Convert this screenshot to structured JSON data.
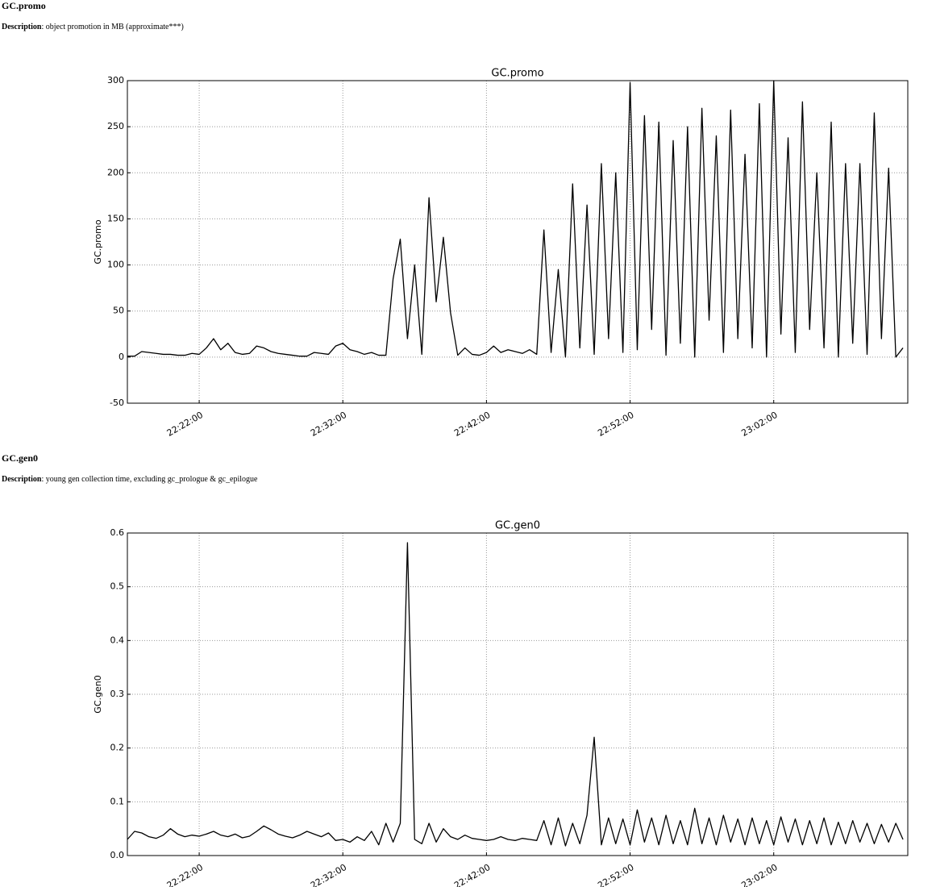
{
  "sections": [
    {
      "heading": "GC.promo",
      "description_label": "Description",
      "description": ": object promotion in MB (approximate***)"
    },
    {
      "heading": "GC.gen0",
      "description_label": "Description",
      "description": ": young gen collection time, excluding gc_prologue & gc_epilogue"
    }
  ],
  "chart_data": [
    {
      "type": "line",
      "title": "GC.promo",
      "y_label": "GC.promo",
      "grid": true,
      "xlim": [
        "22:17:00",
        "23:11:20"
      ],
      "xticks": [
        "22:22:00",
        "22:32:00",
        "22:42:00",
        "22:52:00",
        "23:02:00"
      ],
      "ylim": [
        -50,
        300
      ],
      "yticks": [
        -50,
        0,
        50,
        100,
        150,
        200,
        250,
        300
      ],
      "x": [
        "22:17:00",
        "22:17:30",
        "22:18:00",
        "22:18:30",
        "22:19:00",
        "22:19:30",
        "22:20:00",
        "22:20:30",
        "22:21:00",
        "22:21:30",
        "22:22:00",
        "22:22:30",
        "22:23:00",
        "22:23:30",
        "22:24:00",
        "22:24:30",
        "22:25:00",
        "22:25:30",
        "22:26:00",
        "22:26:30",
        "22:27:00",
        "22:27:30",
        "22:28:00",
        "22:28:30",
        "22:29:00",
        "22:29:30",
        "22:30:00",
        "22:30:30",
        "22:31:00",
        "22:31:30",
        "22:32:00",
        "22:32:30",
        "22:33:00",
        "22:33:30",
        "22:34:00",
        "22:34:30",
        "22:35:00",
        "22:35:30",
        "22:36:00",
        "22:36:30",
        "22:37:00",
        "22:37:30",
        "22:38:00",
        "22:38:30",
        "22:39:00",
        "22:39:30",
        "22:40:00",
        "22:40:30",
        "22:41:00",
        "22:41:30",
        "22:42:00",
        "22:42:30",
        "22:43:00",
        "22:43:30",
        "22:44:00",
        "22:44:30",
        "22:45:00",
        "22:45:30",
        "22:46:00",
        "22:46:30",
        "22:47:00",
        "22:47:30",
        "22:48:00",
        "22:48:30",
        "22:49:00",
        "22:49:30",
        "22:50:00",
        "22:50:30",
        "22:51:00",
        "22:51:30",
        "22:52:00",
        "22:52:30",
        "22:53:00",
        "22:53:30",
        "22:54:00",
        "22:54:30",
        "22:55:00",
        "22:55:30",
        "22:56:00",
        "22:56:30",
        "22:57:00",
        "22:57:30",
        "22:58:00",
        "22:58:30",
        "22:59:00",
        "22:59:30",
        "23:00:00",
        "23:00:30",
        "23:01:00",
        "23:01:30",
        "23:02:00",
        "23:02:30",
        "23:03:00",
        "23:03:30",
        "23:04:00",
        "23:04:30",
        "23:05:00",
        "23:05:30",
        "23:06:00",
        "23:06:30",
        "23:07:00",
        "23:07:30",
        "23:08:00",
        "23:08:30",
        "23:09:00",
        "23:09:30",
        "23:10:00",
        "23:10:30",
        "23:11:00"
      ],
      "series": [
        {
          "color": "#000000",
          "values": [
            1,
            1,
            6,
            5,
            4,
            3,
            3,
            2,
            2,
            4,
            3,
            10,
            20,
            8,
            15,
            5,
            3,
            4,
            12,
            10,
            6,
            4,
            3,
            2,
            1,
            1,
            5,
            4,
            3,
            12,
            15,
            8,
            6,
            3,
            5,
            2,
            2,
            85,
            128,
            20,
            100,
            3,
            173,
            60,
            130,
            48,
            2,
            10,
            3,
            2,
            5,
            12,
            5,
            8,
            6,
            4,
            8,
            3,
            138,
            5,
            95,
            0,
            188,
            10,
            165,
            3,
            210,
            20,
            200,
            5,
            298,
            8,
            262,
            30,
            255,
            2,
            235,
            15,
            250,
            0,
            270,
            40,
            240,
            5,
            268,
            20,
            220,
            10,
            275,
            0,
            300,
            25,
            238,
            5,
            277,
            30,
            200,
            10,
            255,
            0,
            210,
            15,
            210,
            3,
            265,
            20,
            205,
            0,
            10
          ]
        }
      ]
    },
    {
      "type": "line",
      "title": "GC.gen0",
      "y_label": "GC.gen0",
      "grid": true,
      "xlim": [
        "22:17:00",
        "23:11:20"
      ],
      "xticks": [
        "22:22:00",
        "22:32:00",
        "22:42:00",
        "22:52:00",
        "23:02:00"
      ],
      "ylim": [
        0,
        0.6
      ],
      "yticks": [
        {
          "value": 0,
          "label": "0.0"
        },
        0.1,
        0.2,
        0.3,
        0.4,
        0.5,
        0.6
      ],
      "x": [
        "22:17:00",
        "22:17:30",
        "22:18:00",
        "22:18:30",
        "22:19:00",
        "22:19:30",
        "22:20:00",
        "22:20:30",
        "22:21:00",
        "22:21:30",
        "22:22:00",
        "22:22:30",
        "22:23:00",
        "22:23:30",
        "22:24:00",
        "22:24:30",
        "22:25:00",
        "22:25:30",
        "22:26:00",
        "22:26:30",
        "22:27:00",
        "22:27:30",
        "22:28:00",
        "22:28:30",
        "22:29:00",
        "22:29:30",
        "22:30:00",
        "22:30:30",
        "22:31:00",
        "22:31:30",
        "22:32:00",
        "22:32:30",
        "22:33:00",
        "22:33:30",
        "22:34:00",
        "22:34:30",
        "22:35:00",
        "22:35:30",
        "22:36:00",
        "22:36:30",
        "22:37:00",
        "22:37:30",
        "22:38:00",
        "22:38:30",
        "22:39:00",
        "22:39:30",
        "22:40:00",
        "22:40:30",
        "22:41:00",
        "22:41:30",
        "22:42:00",
        "22:42:30",
        "22:43:00",
        "22:43:30",
        "22:44:00",
        "22:44:30",
        "22:45:00",
        "22:45:30",
        "22:46:00",
        "22:46:30",
        "22:47:00",
        "22:47:30",
        "22:48:00",
        "22:48:30",
        "22:49:00",
        "22:49:30",
        "22:50:00",
        "22:50:30",
        "22:51:00",
        "22:51:30",
        "22:52:00",
        "22:52:30",
        "22:53:00",
        "22:53:30",
        "22:54:00",
        "22:54:30",
        "22:55:00",
        "22:55:30",
        "22:56:00",
        "22:56:30",
        "22:57:00",
        "22:57:30",
        "22:58:00",
        "22:58:30",
        "22:59:00",
        "22:59:30",
        "23:00:00",
        "23:00:30",
        "23:01:00",
        "23:01:30",
        "23:02:00",
        "23:02:30",
        "23:03:00",
        "23:03:30",
        "23:04:00",
        "23:04:30",
        "23:05:00",
        "23:05:30",
        "23:06:00",
        "23:06:30",
        "23:07:00",
        "23:07:30",
        "23:08:00",
        "23:08:30",
        "23:09:00",
        "23:09:30",
        "23:10:00",
        "23:10:30",
        "23:11:00"
      ],
      "series": [
        {
          "color": "#000000",
          "values": [
            0.03,
            0.045,
            0.042,
            0.035,
            0.032,
            0.038,
            0.05,
            0.04,
            0.035,
            0.038,
            0.036,
            0.04,
            0.045,
            0.038,
            0.035,
            0.04,
            0.033,
            0.036,
            0.045,
            0.055,
            0.048,
            0.04,
            0.036,
            0.033,
            0.038,
            0.045,
            0.04,
            0.035,
            0.042,
            0.028,
            0.03,
            0.025,
            0.035,
            0.028,
            0.045,
            0.02,
            0.06,
            0.025,
            0.06,
            0.582,
            0.03,
            0.022,
            0.06,
            0.025,
            0.05,
            0.035,
            0.03,
            0.038,
            0.032,
            0.03,
            0.028,
            0.03,
            0.035,
            0.03,
            0.028,
            0.032,
            0.03,
            0.028,
            0.065,
            0.02,
            0.07,
            0.018,
            0.06,
            0.022,
            0.075,
            0.22,
            0.02,
            0.07,
            0.022,
            0.068,
            0.02,
            0.085,
            0.025,
            0.07,
            0.02,
            0.075,
            0.022,
            0.065,
            0.02,
            0.088,
            0.022,
            0.07,
            0.02,
            0.075,
            0.025,
            0.068,
            0.02,
            0.07,
            0.022,
            0.065,
            0.02,
            0.072,
            0.025,
            0.068,
            0.02,
            0.065,
            0.022,
            0.07,
            0.02,
            0.062,
            0.022,
            0.065,
            0.025,
            0.06,
            0.022,
            0.058,
            0.025,
            0.06,
            0.03
          ]
        }
      ]
    }
  ]
}
